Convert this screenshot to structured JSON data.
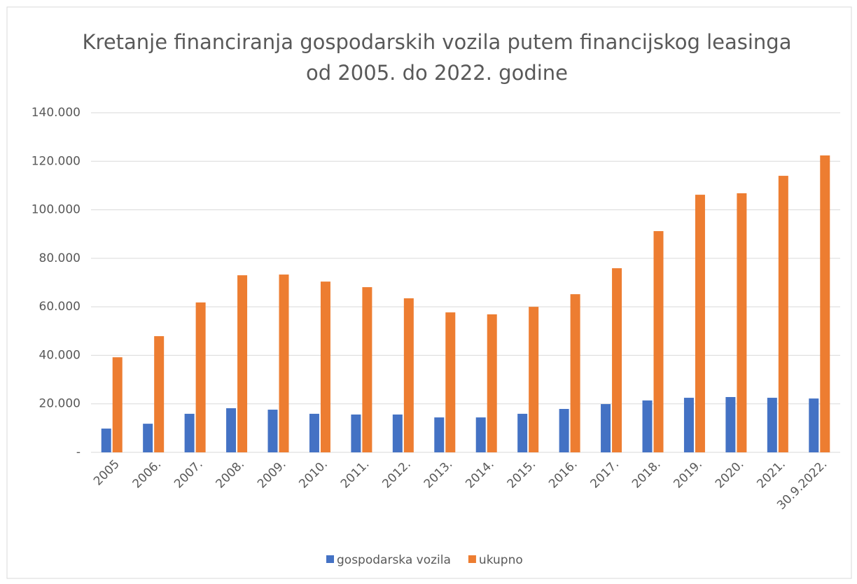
{
  "chart_data": {
    "type": "bar",
    "title": "Kretanje financiranja gospodarskih vozila putem financijskog leasinga od 2005. do 2022. godine",
    "categories": [
      "2005",
      "2006.",
      "2007.",
      "2008.",
      "2009.",
      "2010.",
      "2011.",
      "2012.",
      "2013.",
      "2014.",
      "2015.",
      "2016.",
      "2017.",
      "2018.",
      "2019.",
      "2020.",
      "2021.",
      "30.9.2022."
    ],
    "series": [
      {
        "name": "gospodarska vozila",
        "color": "#4472c4",
        "values": [
          9800,
          11800,
          15900,
          18200,
          17600,
          15900,
          15600,
          15600,
          14400,
          14400,
          15900,
          17900,
          19900,
          21400,
          22500,
          22800,
          22500,
          22200
        ]
      },
      {
        "name": "ukupno",
        "color": "#ed7d31",
        "values": [
          39200,
          47900,
          61800,
          73000,
          73300,
          70400,
          68100,
          63500,
          57700,
          56900,
          60000,
          65200,
          75900,
          91200,
          106200,
          106800,
          114000,
          122400
        ]
      }
    ],
    "ylim": [
      0,
      140000
    ],
    "yticks": [
      {
        "value": 0,
        "label": "-"
      },
      {
        "value": 20000,
        "label": "20.000"
      },
      {
        "value": 40000,
        "label": "40.000"
      },
      {
        "value": 60000,
        "label": "60.000"
      },
      {
        "value": 80000,
        "label": "80.000"
      },
      {
        "value": 100000,
        "label": "100.000"
      },
      {
        "value": 120000,
        "label": "120.000"
      },
      {
        "value": 140000,
        "label": "140.000"
      }
    ],
    "grid": true,
    "legend": "bottom"
  }
}
